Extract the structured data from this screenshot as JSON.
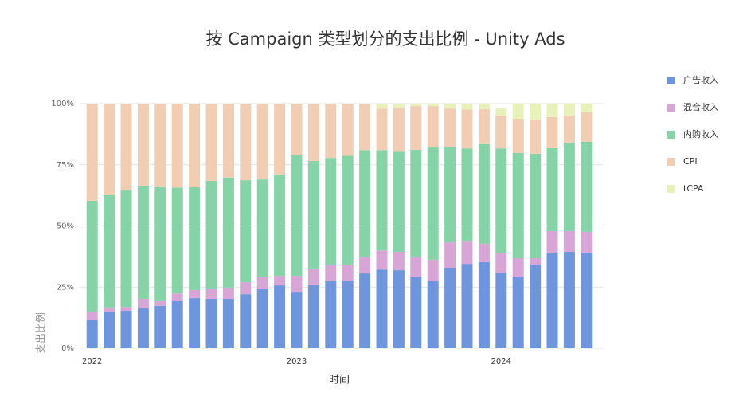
{
  "chart_data": {
    "type": "stacked_bar",
    "title": "按 Campaign 类型划分的支出比例 - Unity Ads",
    "xlabel": "时间",
    "ylabel": "支出比例",
    "categories": [
      "2022",
      null,
      null,
      null,
      null,
      null,
      null,
      null,
      null,
      null,
      null,
      null,
      "2023",
      null,
      null,
      null,
      null,
      null,
      null,
      null,
      null,
      null,
      null,
      null,
      "2024",
      null,
      null,
      null,
      null,
      null
    ],
    "series": [
      {
        "name": "广告收入",
        "color": "#6f96dc",
        "values": [
          11.7,
          14.7,
          15.3,
          16.6,
          17.3,
          19.5,
          20.5,
          20.2,
          20.2,
          22.1,
          24.4,
          25.7,
          23.1,
          26.1,
          27.4,
          27.4,
          30.6,
          32.2,
          31.9,
          29.3,
          27.4,
          32.9,
          34.5,
          35.2,
          30.9,
          29.3,
          34.2,
          38.8,
          39.4,
          39.1
        ]
      },
      {
        "name": "混合收入",
        "color": "#d8a6d6",
        "values": [
          3.3,
          2.0,
          1.6,
          3.6,
          2.3,
          2.9,
          3.3,
          4.2,
          4.6,
          4.9,
          4.9,
          3.9,
          6.5,
          6.5,
          6.8,
          6.5,
          6.8,
          7.8,
          7.5,
          8.1,
          8.8,
          10.4,
          9.4,
          7.5,
          8.1,
          7.5,
          2.6,
          9.1,
          8.5,
          8.5
        ]
      },
      {
        "name": "内购收入",
        "color": "#86d3a8",
        "values": [
          45.3,
          45.9,
          47.9,
          46.3,
          46.6,
          43.3,
          42.0,
          44.0,
          45.0,
          41.7,
          39.7,
          41.4,
          49.5,
          44.0,
          43.6,
          44.8,
          43.6,
          41.0,
          40.9,
          43.7,
          45.9,
          39.1,
          37.8,
          40.7,
          42.7,
          43.0,
          42.7,
          33.9,
          36.2,
          36.8
        ]
      },
      {
        "name": "CPI",
        "color": "#f0cdb3",
        "values": [
          39.7,
          37.4,
          35.2,
          33.5,
          33.8,
          34.3,
          34.2,
          31.6,
          30.2,
          31.3,
          31.0,
          29.0,
          20.9,
          23.4,
          22.2,
          21.3,
          19.0,
          16.9,
          17.9,
          17.9,
          16.9,
          15.6,
          15.9,
          14.3,
          13.4,
          14.0,
          14.0,
          12.7,
          11.1,
          12.1
        ]
      },
      {
        "name": "tCPA",
        "color": "#e8f1b9",
        "values": [
          0,
          0,
          0,
          0,
          0,
          0,
          0,
          0,
          0,
          0,
          0,
          0,
          0,
          0,
          0,
          0,
          0,
          2.0,
          1.6,
          1.0,
          1.0,
          2.0,
          2.3,
          2.3,
          2.9,
          6.2,
          6.5,
          5.5,
          4.9,
          3.6
        ]
      }
    ],
    "ylim": [
      0,
      100
    ],
    "yticks": [
      {
        "value": 0,
        "label": "0%"
      },
      {
        "value": 25,
        "label": "25%"
      },
      {
        "value": 50,
        "label": "50%"
      },
      {
        "value": 75,
        "label": "75%"
      },
      {
        "value": 100,
        "label": "100%"
      }
    ],
    "grid": true,
    "legend": "right"
  }
}
